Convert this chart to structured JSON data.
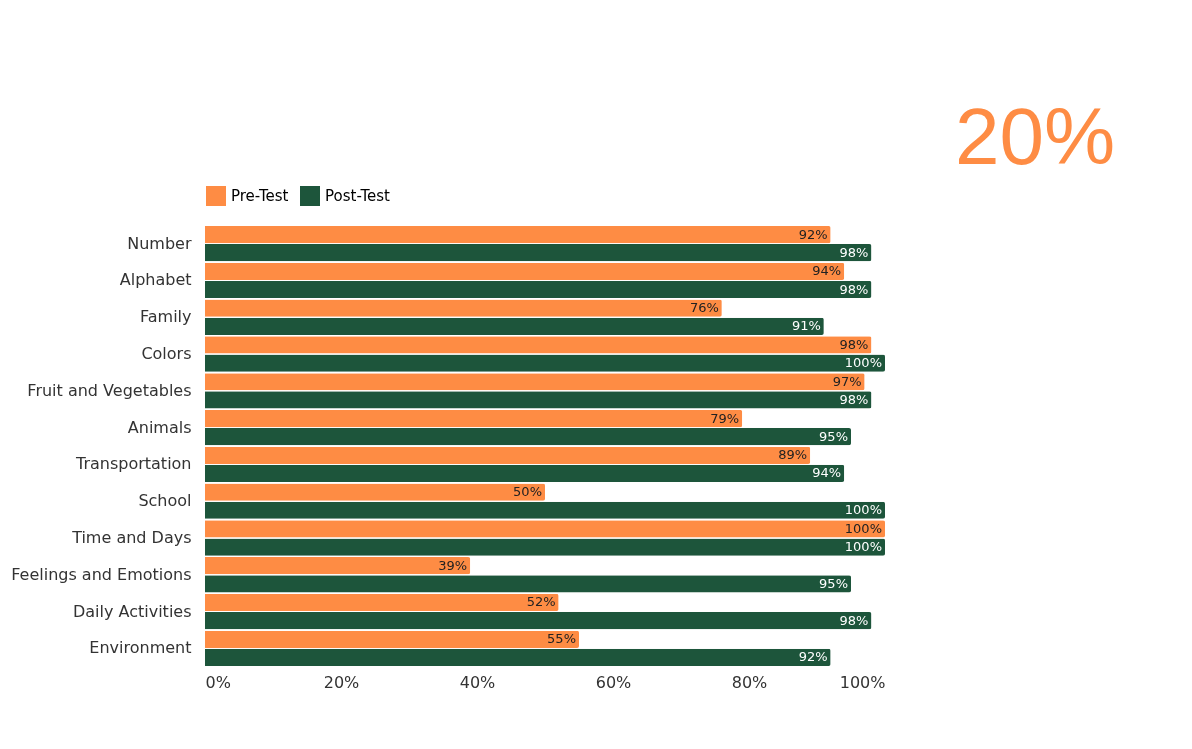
{
  "chart_data": {
    "type": "bar",
    "orientation": "horizontal",
    "categories": [
      "Number",
      "Alphabet",
      "Family",
      "Colors",
      "Fruit and Vegetables",
      "Animals",
      "Transportation",
      "School",
      "Time and Days",
      "Feelings and Emotions",
      "Daily Activities",
      "Environment"
    ],
    "series": [
      {
        "name": "Pre-Test",
        "color": "#fe8c44",
        "values": [
          92,
          94,
          76,
          98,
          97,
          79,
          89,
          50,
          100,
          39,
          52,
          55
        ],
        "value_labels": [
          "92%",
          "94%",
          "76%",
          "98%",
          "97%",
          "79%",
          "89%",
          "50%",
          "100%",
          "39%",
          "52%",
          "55%"
        ]
      },
      {
        "name": "Post-Test",
        "color": "#1d553b",
        "values": [
          98,
          98,
          91,
          100,
          98,
          95,
          94,
          100,
          100,
          95,
          98,
          92
        ],
        "value_labels": [
          "98%",
          "98%",
          "91%",
          "100%",
          "98%",
          "95%",
          "94%",
          "100%",
          "100%",
          "95%",
          "98%",
          "92%"
        ]
      }
    ],
    "xlim": [
      0,
      100
    ],
    "xticks": [
      {
        "value": 0,
        "label": "0%"
      },
      {
        "value": 20,
        "label": "20%"
      },
      {
        "value": 40,
        "label": "40%"
      },
      {
        "value": 60,
        "label": "60%"
      },
      {
        "value": 80,
        "label": "80%"
      },
      {
        "value": 100,
        "label": "100%"
      }
    ],
    "grid": false,
    "legend": "top",
    "annotations": [
      "20%"
    ]
  }
}
